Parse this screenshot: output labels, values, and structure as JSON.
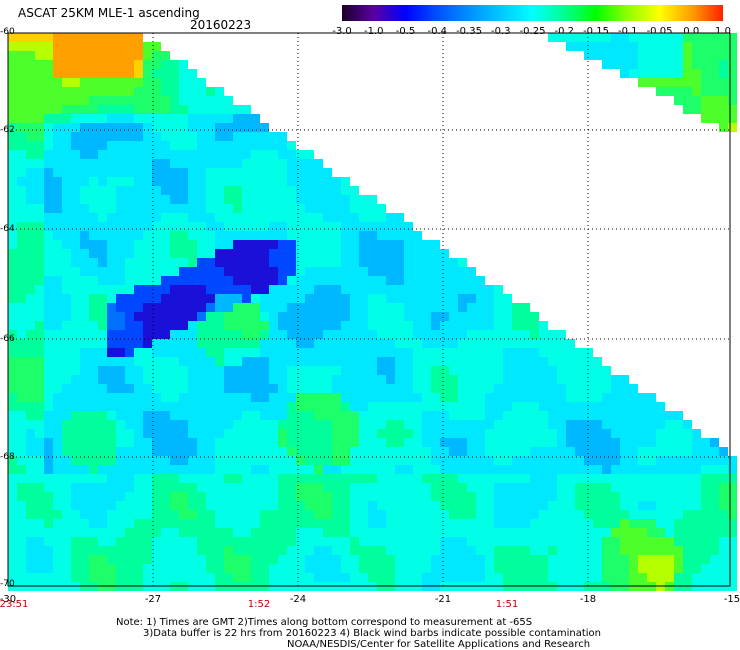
{
  "header": {
    "title": "ASCAT 25KM MLE-1 ascending",
    "date": "20160223"
  },
  "colorbar": {
    "labels": [
      "-3.0",
      "-1.0",
      "-0.5",
      "-0.4",
      "-0.35",
      "-0.3",
      "-0.25",
      "-0.2",
      "-0.15",
      "-0.1",
      "-0.05",
      "0.0",
      "1.0"
    ],
    "colors": [
      "#1a0028",
      "#5a00a0",
      "#0000ff",
      "#0050ff",
      "#0090ff",
      "#00c8ff",
      "#00ffff",
      "#00ff90",
      "#00ff00",
      "#90ff00",
      "#ffff00",
      "#ffa000",
      "#ff2000"
    ]
  },
  "map": {
    "lat_labels": [
      "-60",
      "-62",
      "-64",
      "-66",
      "-68",
      "-70"
    ],
    "lon_labels": [
      "-30",
      "-27",
      "-24",
      "-21",
      "-18",
      "-15"
    ],
    "time_labels": [
      "23:51",
      "1:52",
      "1:51"
    ],
    "lat_range": [
      -70,
      -60
    ],
    "lon_range": [
      -30,
      -15
    ]
  },
  "notes": {
    "line1": "Note: 1) Times are GMT 2)Times along bottom correspond to measurement at -65S",
    "line2": "3)Data buffer is 22 hrs from 20160223 4) Black wind barbs indicate possible contamination",
    "line3": "NOAA/NESDIS/Center for Satellite Applications and Research"
  }
}
